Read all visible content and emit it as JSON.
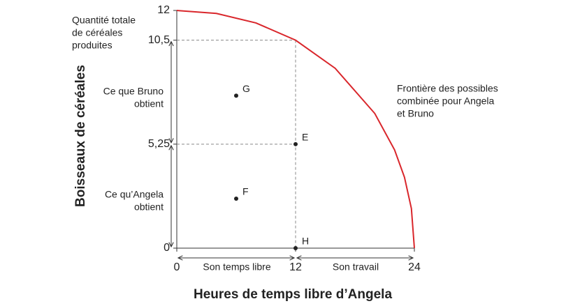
{
  "chart_data": {
    "type": "line",
    "ylabel": "Boisseaux de céréales",
    "xlabel": "Heures de temps libre d’Angela",
    "xlim": [
      0,
      24
    ],
    "ylim": [
      0,
      12
    ],
    "xticks": [
      0,
      12,
      24
    ],
    "yticks": [
      0,
      {
        "value": 5.25,
        "label": "5,25"
      },
      {
        "value": 10.5,
        "label": "10,5"
      },
      12
    ],
    "x": [
      0,
      4,
      8,
      12,
      16,
      20,
      22,
      23,
      23.7,
      24
    ],
    "series": [
      {
        "color": "#d9262b",
        "values": [
          12,
          11.85,
          11.37,
          10.5,
          9.08,
          6.8,
          4.96,
          3.58,
          2.0,
          0
        ]
      }
    ],
    "points": [
      {
        "label": "G",
        "x": 6,
        "y": 7.7
      },
      {
        "label": "E",
        "x": 12,
        "y": 5.25
      },
      {
        "label": "F",
        "x": 6,
        "y": 2.5
      },
      {
        "label": "H",
        "x": 12,
        "y": 0
      }
    ],
    "annotations": {
      "total": [
        "Quantité totale",
        "de céréales",
        "produites"
      ],
      "bruno": [
        "Ce que Bruno",
        "obtient"
      ],
      "angela": [
        "Ce qu’Angela",
        "obtient"
      ],
      "free_time": "Son temps libre",
      "work": "Son travail",
      "frontier": [
        "Frontière des possibles",
        "combinée pour Angela",
        "et Bruno"
      ]
    }
  }
}
